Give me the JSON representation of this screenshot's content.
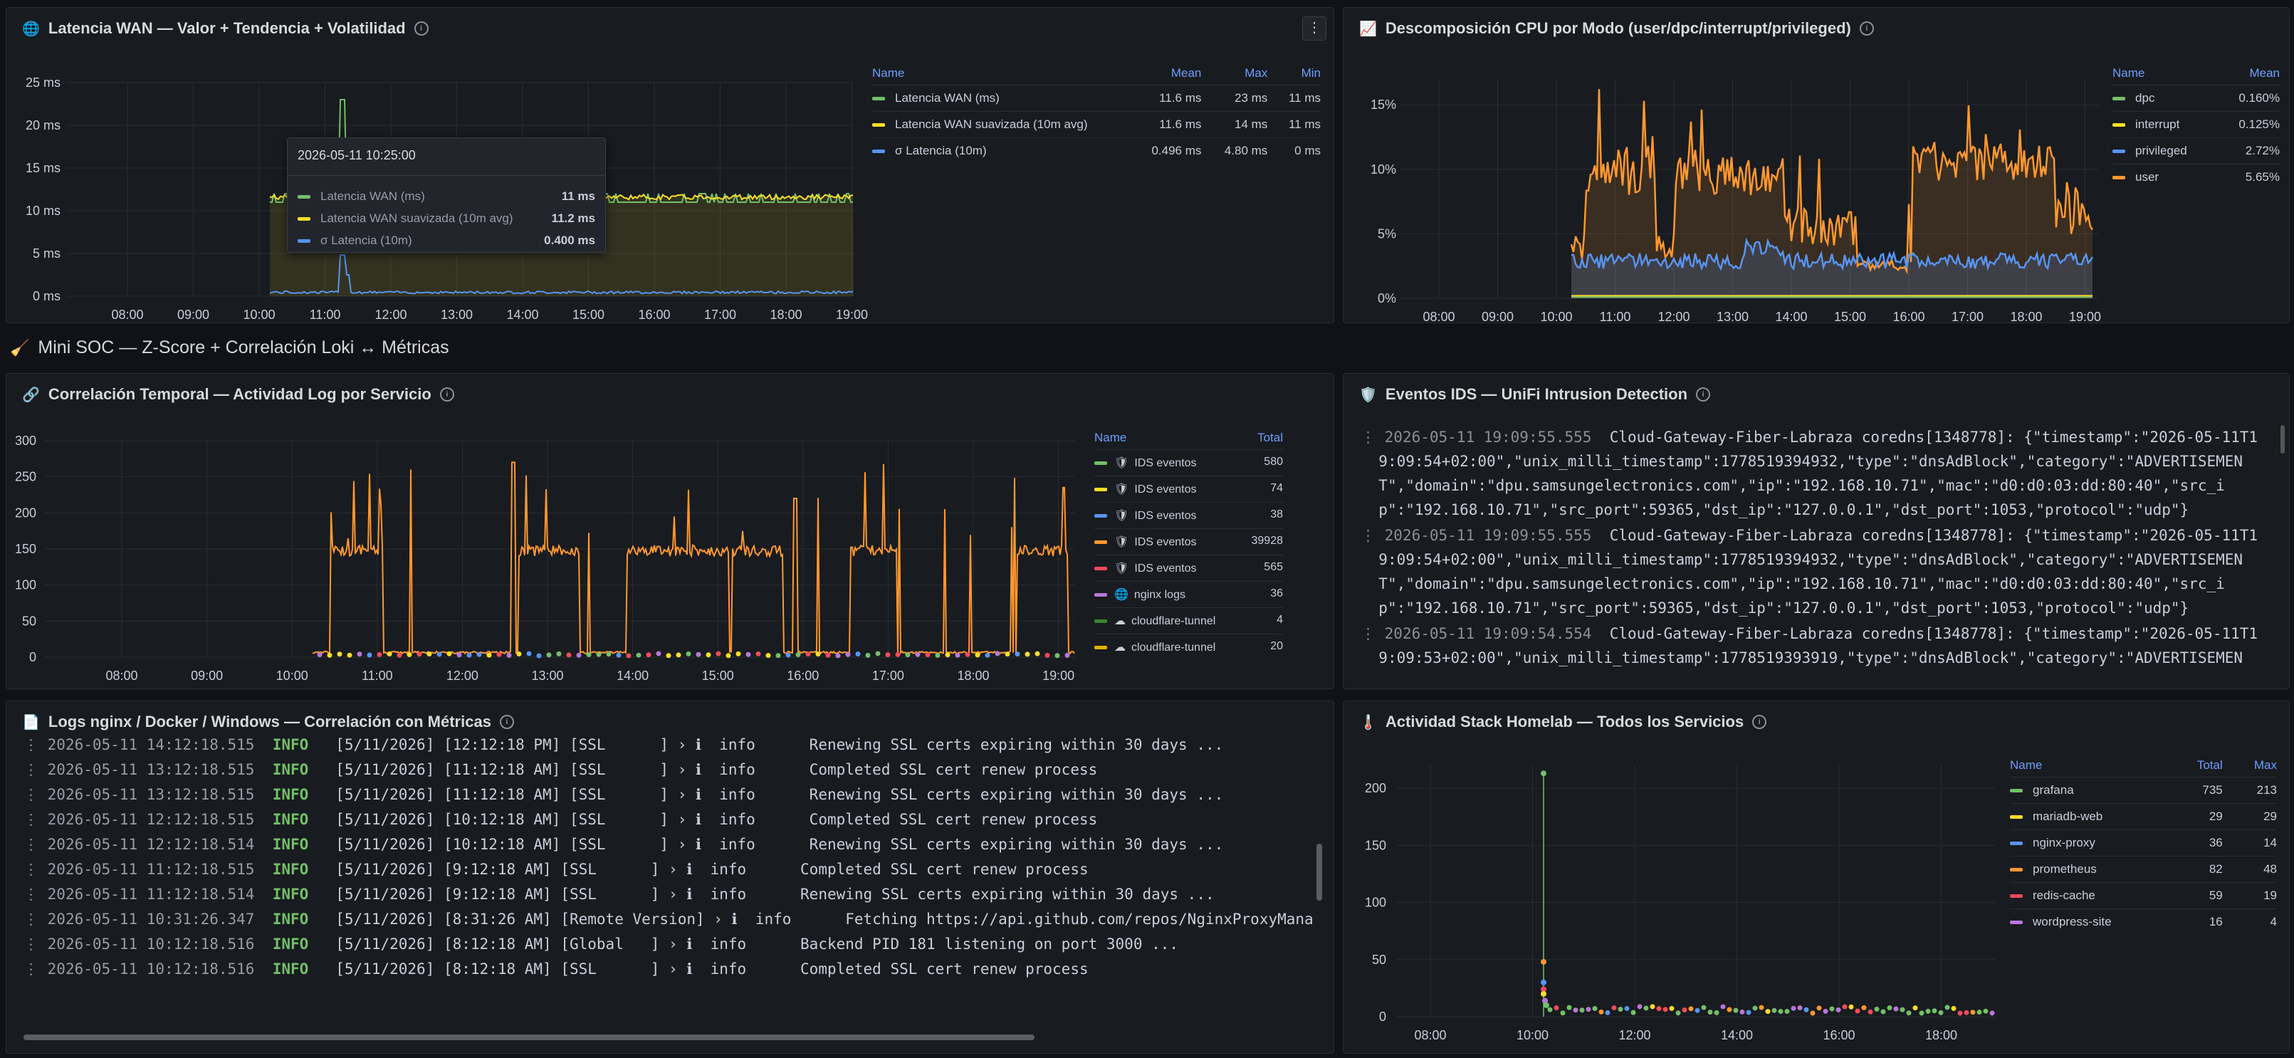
{
  "panels": {
    "wan": {
      "title": "Latencia WAN — Valor + Tendencia + Volatilidad",
      "legend_headers": [
        "Name",
        "Mean",
        "Max",
        "Min"
      ],
      "legend": [
        {
          "name": "Latencia WAN (ms)",
          "color": "#73bf69",
          "mean": "11.6 ms",
          "max": "23 ms",
          "min": "11 ms"
        },
        {
          "name": "Latencia WAN suavizada (10m avg)",
          "color": "#fade2a",
          "mean": "11.6 ms",
          "max": "14 ms",
          "min": "11 ms"
        },
        {
          "name": "σ Latencia (10m)",
          "color": "#5794f2",
          "mean": "0.496 ms",
          "max": "4.80 ms",
          "min": "0 ms"
        }
      ],
      "tooltip": {
        "time": "2026-05-11 10:25:00",
        "rows": [
          {
            "name": "Latencia WAN (ms)",
            "color": "#73bf69",
            "value": "11 ms"
          },
          {
            "name": "Latencia WAN suavizada (10m avg)",
            "color": "#fade2a",
            "value": "11.2 ms"
          },
          {
            "name": "σ Latencia (10m)",
            "color": "#5794f2",
            "value": "0.400 ms"
          }
        ]
      }
    },
    "cpu": {
      "title": "Descomposición CPU por Modo (user/dpc/interrupt/privileged)",
      "legend_headers": [
        "Name",
        "Mean"
      ],
      "legend": [
        {
          "name": "dpc",
          "color": "#73bf69",
          "mean": "0.160%"
        },
        {
          "name": "interrupt",
          "color": "#fade2a",
          "mean": "0.125%"
        },
        {
          "name": "privileged",
          "color": "#5794f2",
          "mean": "2.72%"
        },
        {
          "name": "user",
          "color": "#ff9830",
          "mean": "5.65%"
        }
      ]
    },
    "row_title": "Mini SOC — Z-Score + Correlación Loki ↔ Métricas",
    "corr": {
      "title": "Correlación Temporal — Actividad Log por Servicio",
      "legend_headers": [
        "Name",
        "Total"
      ],
      "legend": [
        {
          "name": "IDS eventos",
          "color": "#73bf69",
          "icon": "shield",
          "total": "580"
        },
        {
          "name": "IDS eventos",
          "color": "#fade2a",
          "icon": "shield",
          "total": "74"
        },
        {
          "name": "IDS eventos",
          "color": "#5794f2",
          "icon": "shield",
          "total": "38"
        },
        {
          "name": "IDS eventos",
          "color": "#ff9830",
          "icon": "shield",
          "total": "39928"
        },
        {
          "name": "IDS eventos",
          "color": "#f2495c",
          "icon": "shield",
          "total": "565"
        },
        {
          "name": "nginx logs",
          "color": "#b877d9",
          "icon": "globe",
          "total": "36"
        },
        {
          "name": "cloudflare-tunnel",
          "color": "#37872d",
          "icon": "cloud",
          "total": "4"
        },
        {
          "name": "cloudflare-tunnel",
          "color": "#e0b400",
          "icon": "cloud",
          "total": "20"
        }
      ]
    },
    "ids": {
      "title": "Eventos IDS — UniFi Intrusion Detection",
      "lines": [
        {
          "ts": "2026-05-11 19:09:55.555",
          "text": "  Cloud-Gateway-Fiber-Labraza coredns[1348778]: {\"timestamp\":\"2026-05-11T1",
          "cont": [
            "9:09:54+02:00\",\"unix_milli_timestamp\":1778519394932,\"type\":\"dnsAdBlock\",\"category\":\"ADVERTISEMEN",
            "T\",\"domain\":\"dpu.samsungelectronics.com\",\"ip\":\"192.168.10.71\",\"mac\":\"d0:d0:03:dd:80:40\",\"src_i",
            "p\":\"192.168.10.71\",\"src_port\":59365,\"dst_ip\":\"127.0.0.1\",\"dst_port\":1053,\"protocol\":\"udp\"}"
          ]
        },
        {
          "ts": "2026-05-11 19:09:55.555",
          "text": "  Cloud-Gateway-Fiber-Labraza coredns[1348778]: {\"timestamp\":\"2026-05-11T1",
          "cont": [
            "9:09:54+02:00\",\"unix_milli_timestamp\":1778519394932,\"type\":\"dnsAdBlock\",\"category\":\"ADVERTISEMEN",
            "T\",\"domain\":\"dpu.samsungelectronics.com\",\"ip\":\"192.168.10.71\",\"mac\":\"d0:d0:03:dd:80:40\",\"src_i",
            "p\":\"192.168.10.71\",\"src_port\":59365,\"dst_ip\":\"127.0.0.1\",\"dst_port\":1053,\"protocol\":\"udp\"}"
          ]
        },
        {
          "ts": "2026-05-11 19:09:54.554",
          "text": "  Cloud-Gateway-Fiber-Labraza coredns[1348778]: {\"timestamp\":\"2026-05-11T1",
          "cont": [
            "9:09:53+02:00\",\"unix_milli_timestamp\":1778519393919,\"type\":\"dnsAdBlock\",\"category\":\"ADVERTISEMEN"
          ]
        }
      ]
    },
    "logs": {
      "title": "Logs nginx / Docker / Windows — Correlación con Métricas",
      "lines": [
        {
          "ts": "2026-05-11 14:12:18.515",
          "lvl": "INFO",
          "msg": "   [5/11/2026] [12:12:18 PM] [SSL      ] › ℹ  info      Renewing SSL certs expiring within 30 days ..."
        },
        {
          "ts": "2026-05-11 13:12:18.515",
          "lvl": "INFO",
          "msg": "   [5/11/2026] [11:12:18 AM] [SSL      ] › ℹ  info      Completed SSL cert renew process"
        },
        {
          "ts": "2026-05-11 13:12:18.515",
          "lvl": "INFO",
          "msg": "   [5/11/2026] [11:12:18 AM] [SSL      ] › ℹ  info      Renewing SSL certs expiring within 30 days ..."
        },
        {
          "ts": "2026-05-11 12:12:18.515",
          "lvl": "INFO",
          "msg": "   [5/11/2026] [10:12:18 AM] [SSL      ] › ℹ  info      Completed SSL cert renew process"
        },
        {
          "ts": "2026-05-11 12:12:18.514",
          "lvl": "INFO",
          "msg": "   [5/11/2026] [10:12:18 AM] [SSL      ] › ℹ  info      Renewing SSL certs expiring within 30 days ..."
        },
        {
          "ts": "2026-05-11 11:12:18.515",
          "lvl": "INFO",
          "msg": "   [5/11/2026] [9:12:18 AM] [SSL      ] › ℹ  info      Completed SSL cert renew process"
        },
        {
          "ts": "2026-05-11 11:12:18.514",
          "lvl": "INFO",
          "msg": "   [5/11/2026] [9:12:18 AM] [SSL      ] › ℹ  info      Renewing SSL certs expiring within 30 days ..."
        },
        {
          "ts": "2026-05-11 10:31:26.347",
          "lvl": "INFO",
          "msg": "   [5/11/2026] [8:31:26 AM] [Remote Version] › ℹ  info      Fetching https://api.github.com/repos/NginxProxyMana"
        },
        {
          "ts": "2026-05-11 10:12:18.516",
          "lvl": "INFO",
          "msg": "   [5/11/2026] [8:12:18 AM] [Global   ] › ℹ  info      Backend PID 181 listening on port 3000 ..."
        },
        {
          "ts": "2026-05-11 10:12:18.516",
          "lvl": "INFO",
          "msg": "   [5/11/2026] [8:12:18 AM] [SSL      ] › ℹ  info      Completed SSL cert renew process"
        }
      ]
    },
    "stack": {
      "title": "Actividad Stack Homelab — Todos los Servicios",
      "legend_headers": [
        "Name",
        "Total",
        "Max"
      ],
      "legend": [
        {
          "name": "grafana",
          "color": "#73bf69",
          "total": "735",
          "max": "213"
        },
        {
          "name": "mariadb-web",
          "color": "#fade2a",
          "total": "29",
          "max": "29"
        },
        {
          "name": "nginx-proxy",
          "color": "#5794f2",
          "total": "36",
          "max": "14"
        },
        {
          "name": "prometheus",
          "color": "#ff9830",
          "total": "82",
          "max": "48"
        },
        {
          "name": "redis-cache",
          "color": "#f2495c",
          "total": "59",
          "max": "19"
        },
        {
          "name": "wordpress-site",
          "color": "#b877d9",
          "total": "16",
          "max": "4"
        }
      ]
    }
  },
  "chart_data": [
    {
      "type": "line",
      "id": "wan",
      "x": [
        "08:00",
        "09:00",
        "10:00",
        "11:00",
        "12:00",
        "13:00",
        "14:00",
        "15:00",
        "16:00",
        "17:00",
        "18:00",
        "19:00"
      ],
      "ylim": [
        0,
        25
      ],
      "yticks": [
        "0 ms",
        "5 ms",
        "10 ms",
        "15 ms",
        "20 ms",
        "25 ms"
      ],
      "series": [
        {
          "name": "Latencia WAN (ms)",
          "peak": 23,
          "base": 11
        },
        {
          "name": "Latencia WAN suavizada (10m avg)",
          "base": 11.6
        },
        {
          "name": "σ Latencia (10m)",
          "peak": 4.8,
          "base": 0.5
        }
      ]
    },
    {
      "type": "area",
      "id": "cpu",
      "x": [
        "08:00",
        "09:00",
        "10:00",
        "11:00",
        "12:00",
        "13:00",
        "14:00",
        "15:00",
        "16:00",
        "17:00",
        "18:00",
        "19:00"
      ],
      "ylim": [
        0,
        17
      ],
      "yticks": [
        "0%",
        "5%",
        "10%",
        "15%"
      ],
      "series": [
        {
          "name": "dpc",
          "mean": 0.16
        },
        {
          "name": "interrupt",
          "mean": 0.125
        },
        {
          "name": "privileged",
          "mean": 2.72
        },
        {
          "name": "user",
          "mean": 5.65
        }
      ]
    },
    {
      "type": "line",
      "id": "corr",
      "x": [
        "08:00",
        "09:00",
        "10:00",
        "11:00",
        "12:00",
        "13:00",
        "14:00",
        "15:00",
        "16:00",
        "17:00",
        "18:00",
        "19:00"
      ],
      "ylim": [
        0,
        300
      ],
      "yticks": [
        "0",
        "50",
        "100",
        "150",
        "200",
        "250",
        "300"
      ]
    },
    {
      "type": "scatter",
      "id": "stack",
      "x": [
        "08:00",
        "10:00",
        "12:00",
        "14:00",
        "16:00",
        "18:00"
      ],
      "ylim": [
        0,
        220
      ],
      "yticks": [
        "0",
        "50",
        "100",
        "150",
        "200"
      ],
      "series": [
        {
          "name": "grafana",
          "max": 213
        },
        {
          "name": "prometheus",
          "max": 48
        }
      ]
    }
  ]
}
